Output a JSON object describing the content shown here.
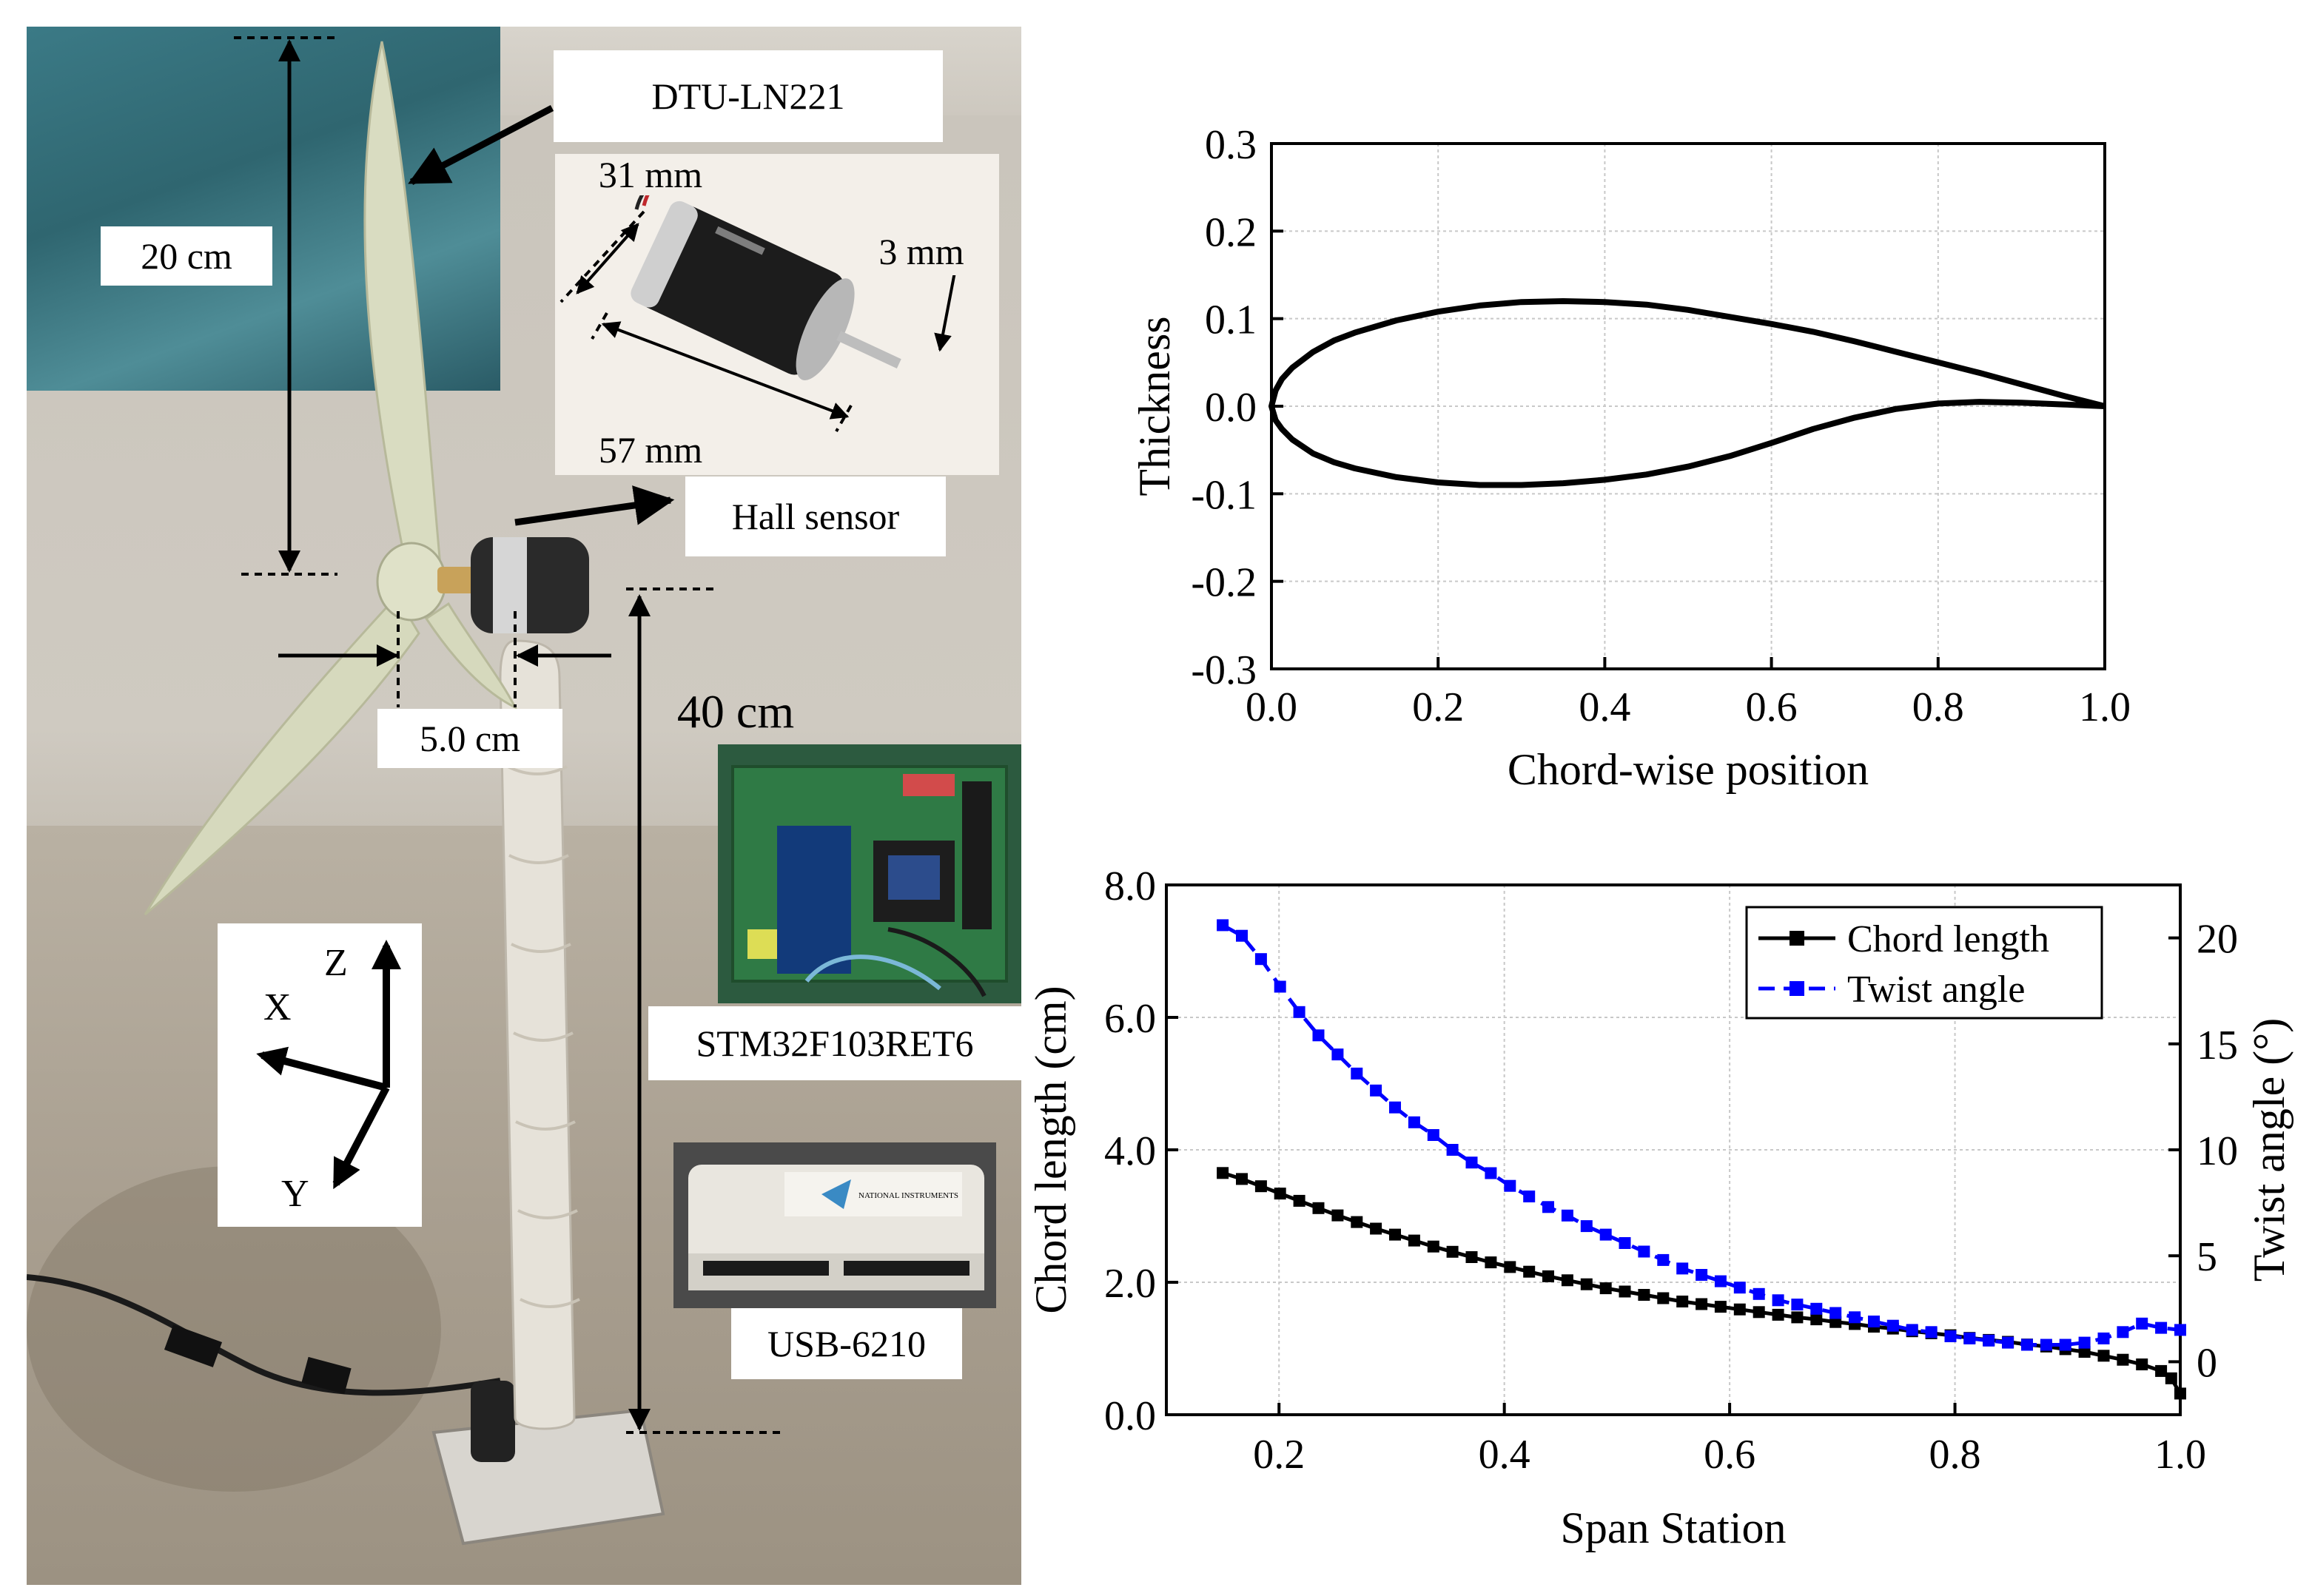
{
  "photo": {
    "labels": {
      "blade_model": "DTU-LN221",
      "blade_length": "20 cm",
      "motor_diameter": "31 mm",
      "shaft_diameter": "3 mm",
      "motor_length": "57 mm",
      "hall_sensor": "Hall sensor",
      "hub_offset": "5.0 cm",
      "tower_height": "40 cm",
      "mcu_board": "STM32F103RET6",
      "daq": "USB-6210"
    },
    "axes": {
      "z": "Z",
      "x": "X",
      "y": "Y"
    },
    "daq_brand": "NATIONAL INSTRUMENTS"
  },
  "chart_data": [
    {
      "type": "line",
      "xlabel": "Chord-wise position",
      "ylabel": "Thickness",
      "xlim": [
        0.0,
        1.0
      ],
      "ylim": [
        -0.3,
        0.3
      ],
      "xticks": [
        "0.0",
        "0.2",
        "0.4",
        "0.6",
        "0.8",
        "1.0"
      ],
      "yticks": [
        "-0.3",
        "-0.2",
        "-0.1",
        "0.0",
        "0.1",
        "0.2",
        "0.3"
      ],
      "grid": true,
      "series": [
        {
          "x": [
            1.0,
            0.95,
            0.9,
            0.85,
            0.8,
            0.75,
            0.7,
            0.65,
            0.6,
            0.55,
            0.5,
            0.45,
            0.4,
            0.35,
            0.3,
            0.25,
            0.2,
            0.15,
            0.1,
            0.075,
            0.05,
            0.025,
            0.0125,
            0.005,
            0.0,
            0.005,
            0.0125,
            0.025,
            0.05,
            0.075,
            0.1,
            0.15,
            0.2,
            0.25,
            0.3,
            0.35,
            0.4,
            0.45,
            0.5,
            0.55,
            0.6,
            0.65,
            0.7,
            0.75,
            0.8,
            0.85,
            0.9,
            0.95,
            1.0
          ],
          "y": [
            0.0,
            0.012,
            0.025,
            0.038,
            0.05,
            0.062,
            0.074,
            0.085,
            0.094,
            0.102,
            0.11,
            0.116,
            0.119,
            0.12,
            0.119,
            0.115,
            0.108,
            0.098,
            0.084,
            0.075,
            0.062,
            0.044,
            0.031,
            0.018,
            0.0,
            -0.016,
            -0.026,
            -0.038,
            -0.054,
            -0.064,
            -0.071,
            -0.081,
            -0.087,
            -0.09,
            -0.09,
            -0.088,
            -0.084,
            -0.078,
            -0.069,
            -0.057,
            -0.042,
            -0.026,
            -0.013,
            -0.003,
            0.003,
            0.005,
            0.004,
            0.002,
            0.0
          ]
        }
      ]
    },
    {
      "type": "line",
      "xlabel": "Span Station",
      "ylabel": "Chord length (cm)",
      "y2label": "Twist angle (°)",
      "xlim": [
        0.1,
        1.0
      ],
      "ylim": [
        0.0,
        8.0
      ],
      "y2lim": [
        -2.5,
        22.5
      ],
      "xticks": [
        "0.2",
        "0.4",
        "0.6",
        "0.8",
        "1.0"
      ],
      "yticks": [
        "0.0",
        "2.0",
        "4.0",
        "6.0",
        "8.0"
      ],
      "y2ticks": [
        "0",
        "5",
        "10",
        "15",
        "20"
      ],
      "grid": true,
      "legend": "top-right",
      "series": [
        {
          "name": "Chord length",
          "color": "#000000",
          "axis": "left",
          "x": [
            0.15,
            0.167,
            0.184,
            0.201,
            0.218,
            0.235,
            0.252,
            0.269,
            0.286,
            0.303,
            0.32,
            0.337,
            0.354,
            0.371,
            0.388,
            0.405,
            0.422,
            0.439,
            0.456,
            0.473,
            0.49,
            0.507,
            0.524,
            0.541,
            0.558,
            0.575,
            0.592,
            0.609,
            0.626,
            0.643,
            0.66,
            0.677,
            0.694,
            0.711,
            0.728,
            0.745,
            0.762,
            0.779,
            0.796,
            0.813,
            0.83,
            0.847,
            0.864,
            0.881,
            0.898,
            0.915,
            0.932,
            0.949,
            0.966,
            0.983,
            0.992,
            1.0
          ],
          "values": [
            3.65,
            3.56,
            3.45,
            3.34,
            3.23,
            3.12,
            3.01,
            2.91,
            2.81,
            2.72,
            2.63,
            2.54,
            2.46,
            2.38,
            2.3,
            2.23,
            2.16,
            2.09,
            2.03,
            1.97,
            1.91,
            1.86,
            1.81,
            1.76,
            1.71,
            1.67,
            1.63,
            1.59,
            1.55,
            1.51,
            1.47,
            1.44,
            1.4,
            1.37,
            1.33,
            1.3,
            1.26,
            1.23,
            1.2,
            1.16,
            1.13,
            1.1,
            1.06,
            1.03,
            0.99,
            0.95,
            0.89,
            0.83,
            0.76,
            0.66,
            0.55,
            0.32
          ]
        },
        {
          "name": "Twist angle",
          "color": "#0000ff",
          "axis": "right",
          "x": [
            0.15,
            0.167,
            0.184,
            0.201,
            0.218,
            0.235,
            0.252,
            0.269,
            0.286,
            0.303,
            0.32,
            0.337,
            0.354,
            0.371,
            0.388,
            0.405,
            0.422,
            0.439,
            0.456,
            0.473,
            0.49,
            0.507,
            0.524,
            0.541,
            0.558,
            0.575,
            0.592,
            0.609,
            0.626,
            0.643,
            0.66,
            0.677,
            0.694,
            0.711,
            0.728,
            0.745,
            0.762,
            0.779,
            0.796,
            0.813,
            0.83,
            0.847,
            0.864,
            0.881,
            0.898,
            0.915,
            0.932,
            0.949,
            0.966,
            0.983,
            1.0
          ],
          "values": [
            20.6,
            20.1,
            19.0,
            17.7,
            16.5,
            15.4,
            14.5,
            13.6,
            12.8,
            12.0,
            11.3,
            10.7,
            10.0,
            9.4,
            8.9,
            8.3,
            7.8,
            7.3,
            6.9,
            6.4,
            6.0,
            5.6,
            5.2,
            4.8,
            4.4,
            4.1,
            3.8,
            3.5,
            3.2,
            2.9,
            2.7,
            2.5,
            2.3,
            2.1,
            1.9,
            1.7,
            1.5,
            1.4,
            1.2,
            1.1,
            1.0,
            0.9,
            0.8,
            0.8,
            0.8,
            0.9,
            1.1,
            1.4,
            1.8,
            1.6,
            1.5
          ]
        }
      ]
    }
  ]
}
